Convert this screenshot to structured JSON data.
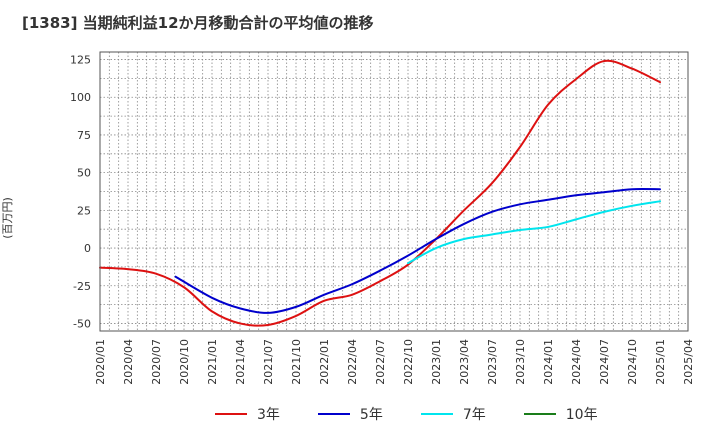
{
  "title": "[1383]  当期純利益12か月移動合計の平均値の推移",
  "chart_data": {
    "type": "line",
    "ylabel": "(百万円)",
    "xlabel": "",
    "ylim": [
      -55,
      130
    ],
    "yticks": [
      -50,
      -25,
      0,
      25,
      50,
      75,
      100,
      125
    ],
    "x_categories": [
      "2020/01",
      "2020/04",
      "2020/07",
      "2020/10",
      "2021/01",
      "2021/04",
      "2021/07",
      "2021/10",
      "2022/01",
      "2022/04",
      "2022/07",
      "2022/10",
      "2023/01",
      "2023/04",
      "2023/07",
      "2023/10",
      "2024/01",
      "2024/04",
      "2024/07",
      "2024/10",
      "2025/01",
      "2025/04"
    ],
    "grid": true,
    "legend_position": "bottom",
    "series": [
      {
        "name": "3年",
        "color": "#dd1111",
        "points": [
          [
            0,
            -13
          ],
          [
            1,
            -14
          ],
          [
            2,
            -17
          ],
          [
            3,
            -26
          ],
          [
            4,
            -42
          ],
          [
            5,
            -50
          ],
          [
            6,
            -51
          ],
          [
            7,
            -45
          ],
          [
            8,
            -35
          ],
          [
            9,
            -31
          ],
          [
            10,
            -22
          ],
          [
            11,
            -11
          ],
          [
            12,
            6
          ],
          [
            13,
            25
          ],
          [
            14,
            43
          ],
          [
            15,
            67
          ],
          [
            16,
            95
          ],
          [
            17,
            112
          ],
          [
            18,
            124
          ],
          [
            19,
            119
          ],
          [
            20,
            110
          ]
        ]
      },
      {
        "name": "5年",
        "color": "#0000cc",
        "points": [
          [
            2.7,
            -19
          ],
          [
            4,
            -33
          ],
          [
            5,
            -40
          ],
          [
            6,
            -43
          ],
          [
            7,
            -39
          ],
          [
            8,
            -31
          ],
          [
            9,
            -24
          ],
          [
            10,
            -15
          ],
          [
            11,
            -5
          ],
          [
            12,
            6
          ],
          [
            13,
            16
          ],
          [
            14,
            24
          ],
          [
            15,
            29
          ],
          [
            16,
            32
          ],
          [
            17,
            35
          ],
          [
            18,
            37
          ],
          [
            19,
            39
          ],
          [
            20,
            39
          ]
        ]
      },
      {
        "name": "7年",
        "color": "#00e5ee",
        "points": [
          [
            11,
            -10
          ],
          [
            12,
            0
          ],
          [
            13,
            6
          ],
          [
            14,
            9
          ],
          [
            15,
            12
          ],
          [
            16,
            14
          ],
          [
            17,
            19
          ],
          [
            18,
            24
          ],
          [
            19,
            28
          ],
          [
            20,
            31
          ]
        ]
      },
      {
        "name": "10年",
        "color": "#1a7d1a",
        "points": []
      }
    ]
  }
}
